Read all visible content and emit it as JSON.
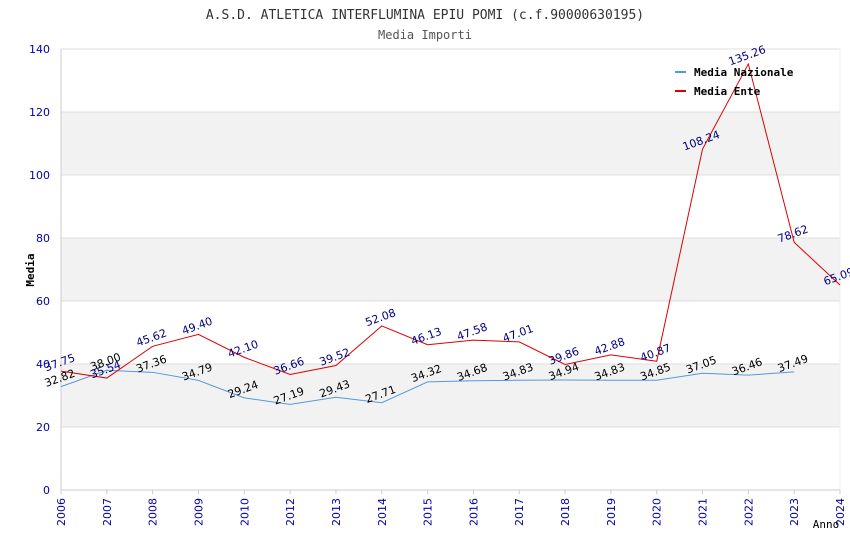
{
  "chart_data": {
    "type": "line",
    "title": "A.S.D. ATLETICA INTERFLUMINA EPIU POMI (c.f.90000630195)",
    "subtitle": "Media Importi",
    "ylabel": "Media",
    "xlabel": "Anno",
    "ylim": [
      0,
      140
    ],
    "yticks": [
      "0",
      "20",
      "40",
      "60",
      "80",
      "100",
      "120",
      "140"
    ],
    "grid": true,
    "legend_position": "top-right",
    "categories": [
      "2006",
      "2007",
      "2008",
      "2009",
      "2010",
      "2012",
      "2013",
      "2014",
      "2015",
      "2016",
      "2017",
      "2018",
      "2019",
      "2020",
      "2021",
      "2022",
      "2023",
      "2024"
    ],
    "series": [
      {
        "name": "Media Nazionale",
        "color": "#5599dd",
        "label_color": "#000000",
        "values": [
          32.82,
          38.0,
          37.36,
          34.79,
          29.24,
          27.19,
          29.43,
          27.71,
          34.32,
          34.68,
          34.83,
          34.94,
          34.83,
          34.85,
          37.05,
          36.46,
          37.49,
          null
        ],
        "labels": [
          "32.82",
          "38.00",
          "37.36",
          "34.79",
          "29.24",
          "27.19",
          "29.43",
          "27.71",
          "34.32",
          "34.68",
          "34.83",
          "34.94",
          "34.83",
          "34.85",
          "37.05",
          "36.46",
          "37.49",
          null
        ]
      },
      {
        "name": "Media Ente",
        "color": "#dd0000",
        "label_color": "#000080",
        "values": [
          37.75,
          35.54,
          45.62,
          49.4,
          42.1,
          36.66,
          39.52,
          52.08,
          46.13,
          47.58,
          47.01,
          39.86,
          42.88,
          40.87,
          108.24,
          135.26,
          78.62,
          65.09
        ],
        "labels": [
          "37.75",
          "35.54",
          "45.62",
          "49.40",
          "42.10",
          "36.66",
          "39.52",
          "52.08",
          "46.13",
          "47.58",
          "47.01",
          "39.86",
          "42.88",
          "40.87",
          "108.24",
          "135.26",
          "78.62",
          "65.09"
        ]
      }
    ]
  }
}
